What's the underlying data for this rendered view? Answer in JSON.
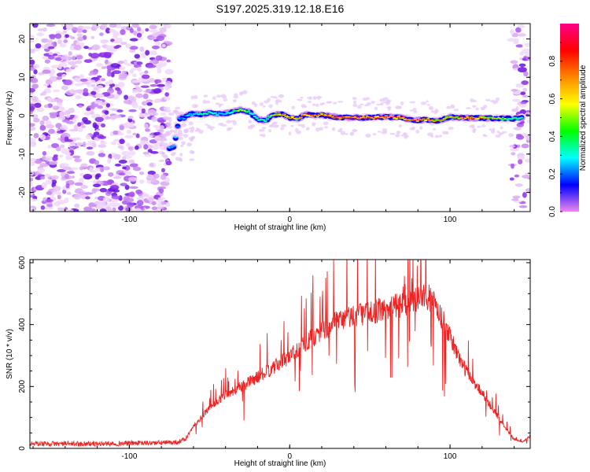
{
  "chart_data": [
    {
      "type": "heatmap",
      "title": "S197.2025.319.12.18.E16",
      "xlabel": "Height of straight line (km)",
      "ylabel": "Frequency (Hz)",
      "xlim": [
        -162,
        150
      ],
      "ylim": [
        -25,
        24
      ],
      "xticks": [
        -100,
        0,
        100
      ],
      "xtick_labels": [
        "-100",
        "0",
        "100"
      ],
      "yticks": [
        -20,
        -10,
        0,
        10,
        20
      ],
      "ytick_labels": [
        "-20",
        "-10",
        "0",
        "10",
        "20"
      ],
      "noise_region_km": [
        -162,
        -75
      ],
      "noise_region_right_km": [
        138,
        150
      ],
      "trace": {
        "x": [
          -75,
          -72,
          -70,
          -68,
          -66,
          -64,
          -60,
          -55,
          -50,
          -45,
          -40,
          -35,
          -30,
          -25,
          -20,
          -15,
          -10,
          -5,
          0,
          5,
          10,
          15,
          20,
          30,
          40,
          50,
          60,
          70,
          75,
          80,
          85,
          90,
          95,
          100,
          105,
          110,
          120,
          130,
          140,
          145
        ],
        "y": [
          -8.5,
          -8,
          -3,
          0,
          -1,
          0.2,
          0.5,
          0.3,
          0.8,
          0.4,
          0.6,
          1.0,
          1.5,
          1.0,
          -1.0,
          -1.2,
          0.2,
          0.4,
          -0.5,
          -0.8,
          0.3,
          0.1,
          0.2,
          -0.5,
          -0.5,
          -0.5,
          -0.3,
          -0.5,
          -1.0,
          -1.2,
          -1.0,
          -1.5,
          -1.0,
          -0.3,
          -0.6,
          -0.6,
          -0.6,
          -0.7,
          -0.8,
          -0.6
        ],
        "amplitude": [
          0.35,
          0.4,
          0.3,
          0.3,
          0.32,
          0.35,
          0.4,
          0.45,
          0.45,
          0.4,
          0.4,
          0.5,
          0.6,
          0.5,
          0.45,
          0.5,
          0.6,
          0.75,
          0.8,
          0.75,
          0.85,
          0.85,
          0.8,
          0.95,
          0.95,
          0.9,
          0.85,
          0.85,
          0.8,
          0.85,
          0.8,
          0.75,
          0.7,
          0.65,
          0.75,
          0.9,
          0.75,
          0.6,
          0.5,
          0.45
        ]
      },
      "colorbar": {
        "label": "Normalized spectral amplitude",
        "range": [
          0,
          1
        ],
        "ticks": [
          0.0,
          0.2,
          0.4,
          0.6,
          0.8
        ],
        "tick_labels": [
          "0.0",
          "0.2",
          "0.4",
          "0.6",
          "0.8"
        ],
        "colors": [
          "#ee88ee",
          "#0000ff",
          "#00ffff",
          "#00ff00",
          "#ffff00",
          "#ff8800",
          "#ff0000",
          "#ff0088"
        ]
      }
    },
    {
      "type": "line",
      "xlabel": "Height of straight line (km)",
      "ylabel": "SNR (10 * v/v)",
      "xlim": [
        -162,
        150
      ],
      "ylim": [
        0,
        610
      ],
      "xticks": [
        -100,
        0,
        100
      ],
      "xtick_labels": [
        "-100",
        "0",
        "100"
      ],
      "yticks": [
        0,
        200,
        400,
        600
      ],
      "ytick_labels": [
        "0",
        "200",
        "400",
        "600"
      ],
      "color": "#ee2222",
      "envelope": {
        "x": [
          -162,
          -120,
          -80,
          -70,
          -65,
          -60,
          -55,
          -50,
          -40,
          -30,
          -20,
          -10,
          0,
          10,
          20,
          30,
          40,
          50,
          60,
          70,
          80,
          85,
          90,
          95,
          100,
          105,
          110,
          120,
          130,
          140,
          145,
          150
        ],
        "y": [
          15,
          15,
          18,
          20,
          30,
          70,
          100,
          130,
          175,
          200,
          230,
          260,
          300,
          340,
          380,
          410,
          430,
          440,
          450,
          465,
          480,
          495,
          470,
          420,
          360,
          300,
          250,
          180,
          100,
          30,
          20,
          40
        ]
      }
    }
  ]
}
